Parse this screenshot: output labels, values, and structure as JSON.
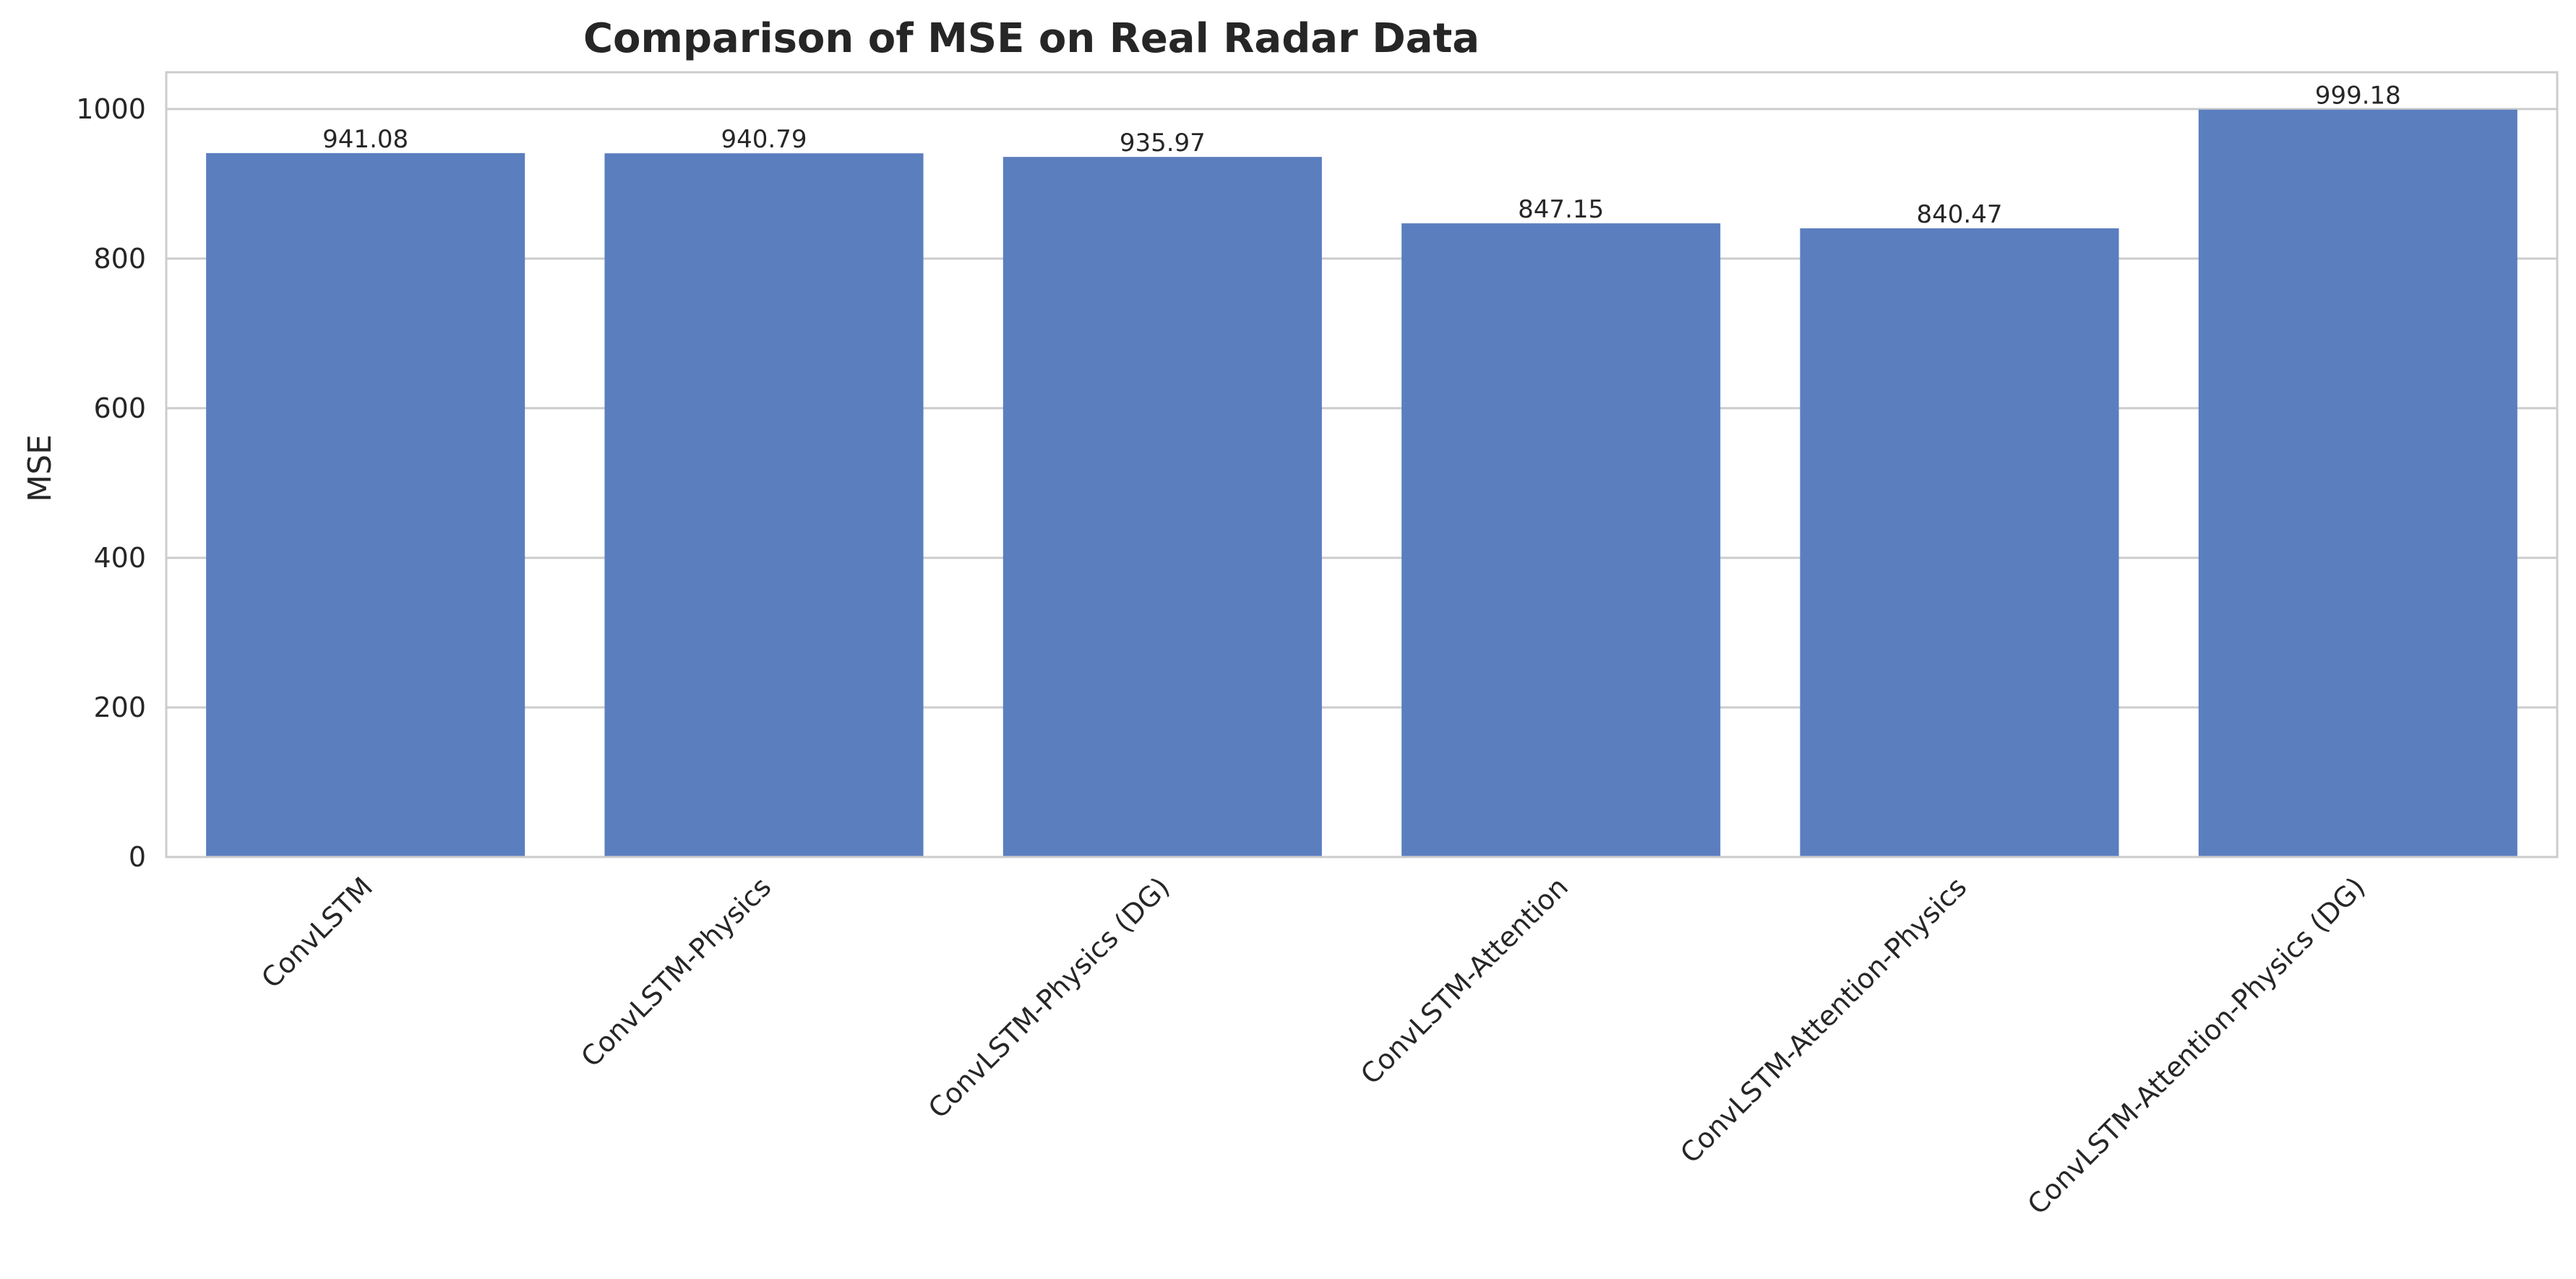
{
  "chart_data": {
    "type": "bar",
    "title": "Comparison of MSE on Real Radar Data",
    "xlabel": "",
    "ylabel": "MSE",
    "categories": [
      "ConvLSTM",
      "ConvLSTM-Physics",
      "ConvLSTM-Physics (DG)",
      "ConvLSTM-Attention",
      "ConvLSTM-Attention-Physics",
      "ConvLSTM-Attention-Physics (DG)"
    ],
    "values": [
      941.08,
      940.79,
      935.97,
      847.15,
      840.47,
      999.18
    ],
    "value_labels": [
      "941.08",
      "940.79",
      "935.97",
      "847.15",
      "840.47",
      "999.18"
    ],
    "ylim": [
      0,
      1049.14
    ],
    "yticks": [
      0,
      200,
      400,
      600,
      800,
      1000
    ],
    "grid": "y",
    "legend": "none",
    "colors": {
      "bar": "#5b7ebf",
      "grid": "#cccccc",
      "spine": "#cccccc",
      "text": "#262626"
    }
  }
}
